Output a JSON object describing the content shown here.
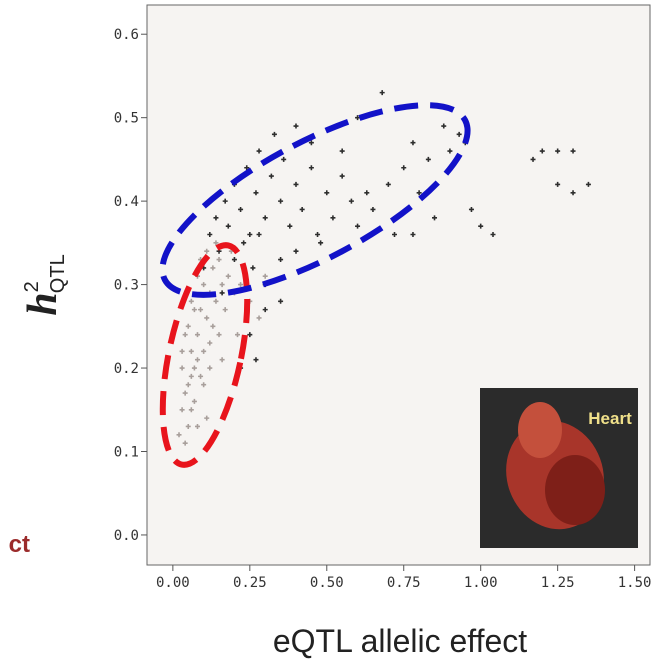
{
  "chart_data": {
    "type": "scatter",
    "xlabel": "eQTL allelic effect",
    "ylabel": "h",
    "ylabel_superscript": "2",
    "ylabel_subscript": "QTL",
    "side_text": "ct",
    "inset_label": "Heart",
    "xlim": [
      -0.084,
      1.55
    ],
    "ylim": [
      -0.036,
      0.635
    ],
    "xticks": [
      {
        "value": 0,
        "label": "0.00"
      },
      {
        "value": 0.25,
        "label": "0.25"
      },
      {
        "value": 0.5,
        "label": "0.50"
      },
      {
        "value": 0.75,
        "label": "0.75"
      },
      {
        "value": 1,
        "label": "1.00"
      },
      {
        "value": 1.25,
        "label": "1.25"
      },
      {
        "value": 1.5,
        "label": "1.50"
      }
    ],
    "yticks": [
      {
        "value": 0,
        "label": "0.0"
      },
      0.1,
      0.2,
      0.3,
      0.4,
      0.5,
      0.6
    ],
    "series": [
      {
        "color": "#a89f9b",
        "x": [
          0.02,
          0.03,
          0.04,
          0.05,
          0.03,
          0.06,
          0.05,
          0.07,
          0.08,
          0.06,
          0.09,
          0.1,
          0.08,
          0.11,
          0.12,
          0.1,
          0.04,
          0.07,
          0.09,
          0.13,
          0.14,
          0.15,
          0.12,
          0.16,
          0.11,
          0.05,
          0.06,
          0.08,
          0.1,
          0.13,
          0.17,
          0.18,
          0.2,
          0.15,
          0.07,
          0.09,
          0.03,
          0.12,
          0.14,
          0.19,
          0.22,
          0.25,
          0.04,
          0.06,
          0.08,
          0.11,
          0.16,
          0.28,
          0.3,
          0.21
        ],
        "values": [
          0.12,
          0.15,
          0.11,
          0.18,
          0.2,
          0.22,
          0.25,
          0.2,
          0.24,
          0.28,
          0.27,
          0.3,
          0.31,
          0.26,
          0.29,
          0.22,
          0.17,
          0.16,
          0.19,
          0.32,
          0.28,
          0.33,
          0.23,
          0.3,
          0.34,
          0.13,
          0.15,
          0.13,
          0.18,
          0.25,
          0.27,
          0.31,
          0.29,
          0.24,
          0.27,
          0.33,
          0.22,
          0.2,
          0.35,
          0.34,
          0.3,
          0.28,
          0.24,
          0.19,
          0.21,
          0.14,
          0.21,
          0.26,
          0.31,
          0.24
        ]
      },
      {
        "color": "#2e2e2e",
        "x": [
          0.1,
          0.12,
          0.14,
          0.15,
          0.17,
          0.18,
          0.2,
          0.22,
          0.24,
          0.25,
          0.27,
          0.28,
          0.3,
          0.32,
          0.33,
          0.35,
          0.36,
          0.38,
          0.4,
          0.42,
          0.45,
          0.47,
          0.5,
          0.52,
          0.55,
          0.58,
          0.6,
          0.63,
          0.65,
          0.7,
          0.72,
          0.75,
          0.78,
          0.8,
          0.83,
          0.85,
          0.88,
          0.9,
          0.93,
          0.95,
          0.97,
          1.0,
          1.04,
          0.78,
          0.68,
          1.17,
          1.2,
          1.25,
          1.3,
          1.25,
          1.3,
          1.35,
          0.16,
          0.2,
          0.23,
          0.26,
          0.3,
          0.35,
          0.4,
          0.48,
          0.25,
          0.3,
          0.35,
          0.22,
          0.27,
          0.45,
          0.55,
          0.6,
          0.4,
          0.28
        ],
        "values": [
          0.32,
          0.36,
          0.38,
          0.34,
          0.4,
          0.37,
          0.42,
          0.39,
          0.44,
          0.36,
          0.41,
          0.46,
          0.38,
          0.43,
          0.48,
          0.4,
          0.45,
          0.37,
          0.42,
          0.39,
          0.44,
          0.36,
          0.41,
          0.38,
          0.43,
          0.4,
          0.37,
          0.41,
          0.39,
          0.42,
          0.36,
          0.44,
          0.47,
          0.41,
          0.45,
          0.38,
          0.49,
          0.46,
          0.48,
          0.47,
          0.39,
          0.37,
          0.36,
          0.36,
          0.53,
          0.45,
          0.46,
          0.46,
          0.46,
          0.42,
          0.41,
          0.42,
          0.29,
          0.33,
          0.35,
          0.32,
          0.3,
          0.33,
          0.34,
          0.35,
          0.24,
          0.27,
          0.28,
          0.2,
          0.21,
          0.47,
          0.46,
          0.5,
          0.49,
          0.36
        ]
      }
    ]
  }
}
